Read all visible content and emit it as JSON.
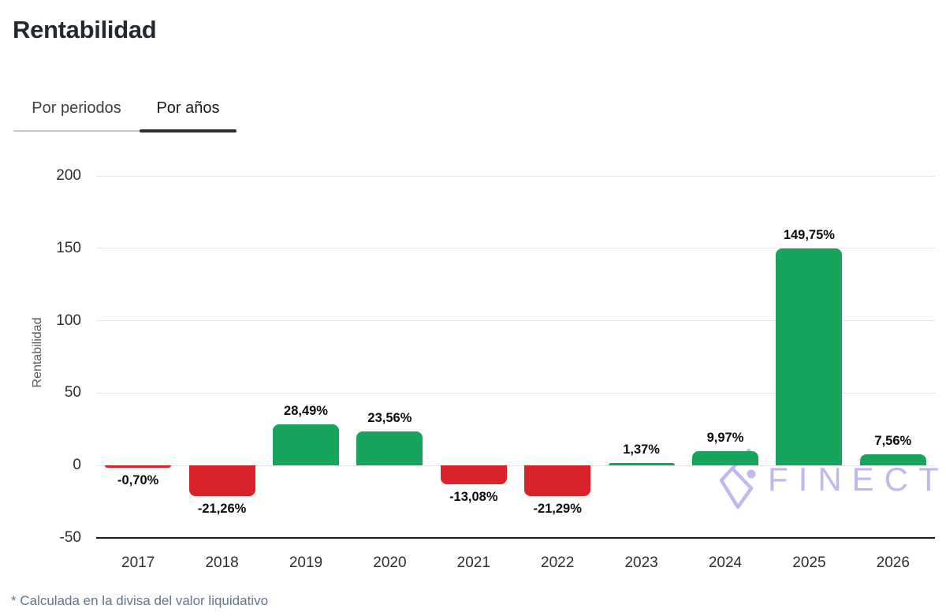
{
  "header": {
    "title": "Rentabilidad"
  },
  "tabs": [
    {
      "label": "Por periodos",
      "active": false
    },
    {
      "label": "Por años",
      "active": true
    }
  ],
  "chart_data": {
    "type": "bar",
    "title": "Rentabilidad",
    "categories": [
      "2017",
      "2018",
      "2019",
      "2020",
      "2021",
      "2022",
      "2023",
      "2024",
      "2025",
      "2026"
    ],
    "values": [
      -0.7,
      -21.26,
      28.49,
      23.56,
      -13.08,
      -21.29,
      1.37,
      9.97,
      149.75,
      7.56
    ],
    "value_labels": [
      "-0,70%",
      "-21,26%",
      "28,49%",
      "23,56%",
      "-13,08%",
      "-21,29%",
      "1,37%",
      "9,97%",
      "149,75%",
      "7,56%"
    ],
    "xlabel": "",
    "ylabel": "Rentabilidad",
    "yticks": [
      200,
      150,
      100,
      50,
      0,
      -50
    ],
    "ylim": [
      -50,
      250
    ],
    "grid": true,
    "legend": "none",
    "positive_color": "#18A45C",
    "negative_color": "#D8232A"
  },
  "watermark": {
    "text": "FINECT",
    "color": "#BDB9F1"
  },
  "footer": {
    "note": "* Calculada en la divisa del valor liquidativo"
  }
}
